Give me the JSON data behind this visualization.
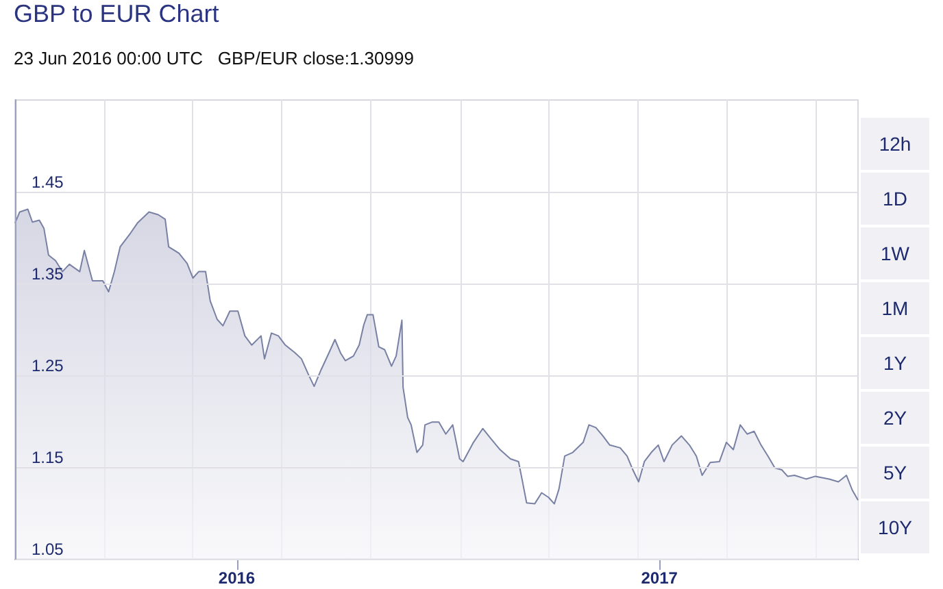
{
  "chart_data": {
    "type": "area",
    "title": "GBP to EUR Chart",
    "annotations": [
      "23 Jun 2016 00:00 UTC   GBP/EUR close:1.30999",
      "12h",
      "1D",
      "1W",
      "1M",
      "1Y",
      "2Y",
      "5Y",
      "10Y"
    ],
    "x": [
      "2015-07-24",
      "2015-07-28",
      "2015-08-04",
      "2015-08-08",
      "2015-08-14",
      "2015-08-18",
      "2015-08-22",
      "2015-08-28",
      "2015-09-03",
      "2015-09-09",
      "2015-09-18",
      "2015-09-22",
      "2015-09-29",
      "2015-10-08",
      "2015-10-13",
      "2015-10-18",
      "2015-10-23",
      "2015-11-01",
      "2015-11-07",
      "2015-11-17",
      "2015-11-25",
      "2015-12-01",
      "2015-12-04",
      "2015-12-13",
      "2015-12-20",
      "2015-12-25",
      "2015-12-30",
      "2016-01-05",
      "2016-01-09",
      "2016-01-15",
      "2016-01-20",
      "2016-01-26",
      "2016-02-02",
      "2016-02-08",
      "2016-02-14",
      "2016-02-22",
      "2016-02-25",
      "2016-03-02",
      "2016-03-08",
      "2016-03-14",
      "2016-03-22",
      "2016-03-28",
      "2016-04-03",
      "2016-04-08",
      "2016-04-14",
      "2016-04-21",
      "2016-04-26",
      "2016-05-01",
      "2016-05-05",
      "2016-05-12",
      "2016-05-17",
      "2016-05-21",
      "2016-05-24",
      "2016-05-29",
      "2016-06-03",
      "2016-06-08",
      "2016-06-14",
      "2016-06-18",
      "2016-06-23",
      "2016-06-24",
      "2016-06-28",
      "2016-07-01",
      "2016-07-06",
      "2016-07-11",
      "2016-07-13",
      "2016-07-19",
      "2016-07-25",
      "2016-07-31",
      "2016-08-06",
      "2016-08-12",
      "2016-08-15",
      "2016-08-24",
      "2016-09-01",
      "2016-09-08",
      "2016-09-16",
      "2016-09-25",
      "2016-10-02",
      "2016-10-05",
      "2016-10-09",
      "2016-10-16",
      "2016-10-22",
      "2016-10-28",
      "2016-11-02",
      "2016-11-06",
      "2016-11-11",
      "2016-11-18",
      "2016-11-27",
      "2016-12-02",
      "2016-12-08",
      "2016-12-14",
      "2016-12-20",
      "2016-12-29",
      "2017-01-04",
      "2017-01-09",
      "2017-01-14",
      "2017-01-19",
      "2017-01-25",
      "2017-01-31",
      "2017-02-05",
      "2017-02-12",
      "2017-02-20",
      "2017-02-27",
      "2017-03-05",
      "2017-03-10",
      "2017-03-17",
      "2017-03-25",
      "2017-03-31",
      "2017-04-06",
      "2017-04-12",
      "2017-04-18",
      "2017-04-24",
      "2017-04-30",
      "2017-05-06",
      "2017-05-12",
      "2017-05-18",
      "2017-05-23",
      "2017-05-29",
      "2017-06-08",
      "2017-06-16",
      "2017-06-28",
      "2017-07-06",
      "2017-07-13",
      "2017-07-18",
      "2017-07-23"
    ],
    "series": [
      {
        "color": "#7880a4",
        "values": [
          1.416,
          1.428,
          1.431,
          1.417,
          1.419,
          1.41,
          1.381,
          1.375,
          1.363,
          1.371,
          1.363,
          1.386,
          1.353,
          1.353,
          1.341,
          1.363,
          1.39,
          1.405,
          1.416,
          1.428,
          1.425,
          1.42,
          1.39,
          1.383,
          1.372,
          1.356,
          1.363,
          1.363,
          1.331,
          1.311,
          1.304,
          1.32,
          1.32,
          1.293,
          1.283,
          1.293,
          1.268,
          1.296,
          1.293,
          1.283,
          1.275,
          1.268,
          1.251,
          1.238,
          1.256,
          1.275,
          1.289,
          1.274,
          1.266,
          1.271,
          1.283,
          1.305,
          1.316,
          1.316,
          1.281,
          1.278,
          1.26,
          1.271,
          1.31,
          1.237,
          1.204,
          1.196,
          1.166,
          1.174,
          1.196,
          1.199,
          1.199,
          1.186,
          1.196,
          1.159,
          1.156,
          1.177,
          1.192,
          1.181,
          1.169,
          1.159,
          1.156,
          1.137,
          1.111,
          1.11,
          1.122,
          1.117,
          1.11,
          1.126,
          1.162,
          1.166,
          1.177,
          1.196,
          1.193,
          1.184,
          1.174,
          1.171,
          1.162,
          1.147,
          1.134,
          1.156,
          1.166,
          1.174,
          1.156,
          1.174,
          1.184,
          1.174,
          1.162,
          1.141,
          1.155,
          1.156,
          1.177,
          1.169,
          1.196,
          1.186,
          1.189,
          1.174,
          1.162,
          1.149,
          1.147,
          1.14,
          1.141,
          1.137,
          1.14,
          1.137,
          1.134,
          1.141,
          1.125,
          1.114
        ]
      }
    ],
    "xlim": [
      "2015-07-24",
      "2017-07-23"
    ],
    "xticks": [
      {
        "value": "2015-10-10",
        "label": null
      },
      {
        "value": "2015-12-25",
        "label": null
      },
      {
        "value": "2016-02-01",
        "label": "2016"
      },
      {
        "value": "2016-03-11",
        "label": null
      },
      {
        "value": "2016-05-27",
        "label": null
      },
      {
        "value": "2016-08-13",
        "label": null
      },
      {
        "value": "2016-10-28",
        "label": null
      },
      {
        "value": "2017-01-13",
        "label": null
      },
      {
        "value": "2017-02-01",
        "label": "2017"
      },
      {
        "value": "2017-03-31",
        "label": null
      },
      {
        "value": "2017-06-16",
        "label": null
      }
    ],
    "ylim": [
      1.05,
      1.55
    ],
    "yticks": [
      1.05,
      1.15,
      1.25,
      1.35,
      1.45
    ],
    "grid": true,
    "marker": "none",
    "line_style": "solid"
  }
}
